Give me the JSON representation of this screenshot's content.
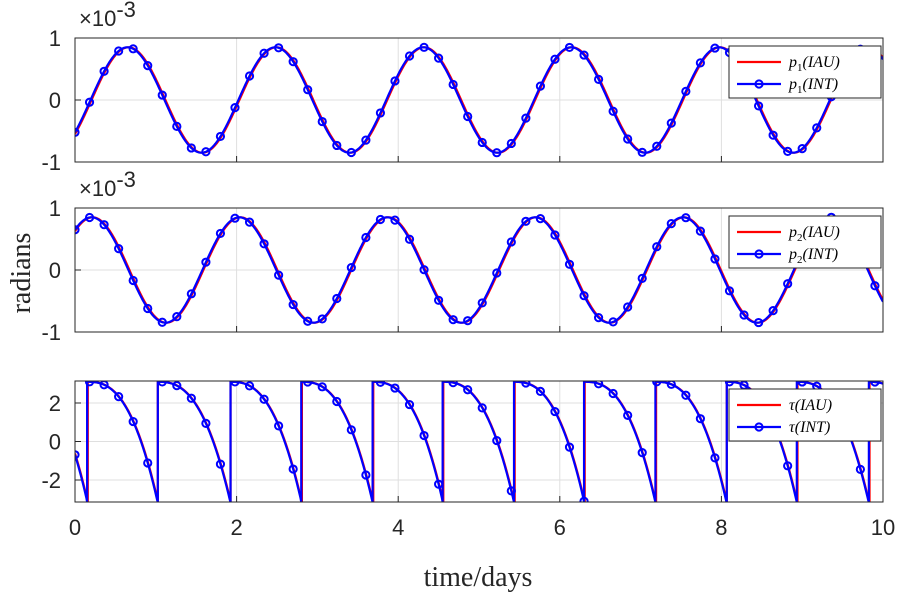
{
  "chart_data": {
    "type": "line",
    "ylabel": "radians",
    "xlabel": "time/days",
    "xlim": [
      0,
      10
    ],
    "xticks": [
      "0",
      "2",
      "4",
      "6",
      "8",
      "10"
    ],
    "grid": true,
    "colors": {
      "IAU": "#ff0000",
      "INT": "#0000ff"
    },
    "panels": [
      {
        "id": "p1",
        "ylim": [
          -1,
          1
        ],
        "yticks": [
          "1",
          "0",
          "-1"
        ],
        "exponent": "×10-3",
        "exponent_base": "×10",
        "exponent_power": "-3",
        "amplitude": 0.85,
        "period_days": 1.83,
        "phase": -0.66,
        "legend": [
          {
            "base": "p",
            "sub": "1",
            "arg": "(IAU)"
          },
          {
            "base": "p",
            "sub": "1",
            "arg": "(INT)"
          }
        ],
        "legend_position": "top-right"
      },
      {
        "id": "p2",
        "ylim": [
          -1,
          1
        ],
        "yticks": [
          "1",
          "0",
          "-1"
        ],
        "exponent": "×10-3",
        "exponent_base": "×10",
        "exponent_power": "-3",
        "amplitude": 0.85,
        "period_days": 1.83,
        "phase": 0.87,
        "legend": [
          {
            "base": "p",
            "sub": "2",
            "arg": "(IAU)"
          },
          {
            "base": "p",
            "sub": "2",
            "arg": "(INT)"
          }
        ],
        "legend_position": "top-right"
      },
      {
        "id": "tau",
        "ylim": [
          -3.14159,
          3.14159
        ],
        "yticks": [
          "2",
          "0",
          "-2"
        ],
        "ytick_values": [
          2,
          0,
          -2
        ],
        "wrap_times": [
          0.15,
          1.02,
          1.92,
          2.8,
          3.68,
          4.55,
          5.43,
          6.3,
          7.18,
          8.06,
          8.93,
          9.82
        ],
        "legend": [
          {
            "base": "τ",
            "sub": "",
            "arg": "(IAU)"
          },
          {
            "base": "τ",
            "sub": "",
            "arg": "(INT)"
          }
        ],
        "legend_position": "top-right"
      }
    ]
  }
}
